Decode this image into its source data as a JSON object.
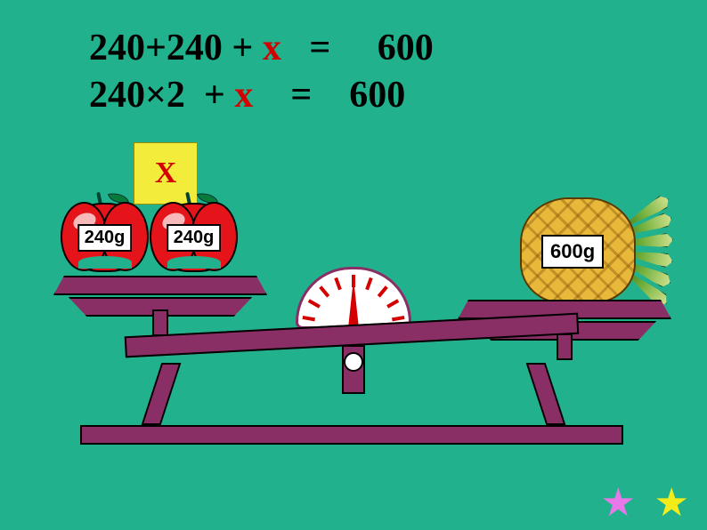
{
  "background_color": "#21b28d",
  "equations": {
    "line1": {
      "a": "240+240 + ",
      "x": "x",
      "b": "   =     600"
    },
    "line2": {
      "a": "240×2  + ",
      "x": "x",
      "b": "    =    600"
    },
    "text_color": "#000000",
    "x_color": "#d40000",
    "font_size_pt": 32
  },
  "scale": {
    "frame_color": "#8a2e66",
    "border_color": "#000000",
    "beam_tilt_deg": -3,
    "dial": {
      "bg": "#ffffff",
      "border": "#8a2e66",
      "tick_color": "#d40000",
      "tick_count": 9,
      "needle_angle_deg": 0
    },
    "left_pan": {
      "unknown_box": {
        "label": "X",
        "bg": "#f4ec3a",
        "text_color": "#d40000"
      },
      "items": [
        {
          "type": "apple",
          "color": "#e4141a",
          "label": "240g"
        },
        {
          "type": "apple",
          "color": "#e4141a",
          "label": "240g"
        }
      ]
    },
    "right_pan": {
      "items": [
        {
          "type": "pineapple",
          "body_color": "#e8b83a",
          "leaf_color": "#4d8a2a",
          "label": "600g"
        }
      ]
    }
  },
  "stars": {
    "pink": {
      "glyph": "★",
      "color": "#e878e8"
    },
    "yellow": {
      "glyph": "★",
      "color": "#f4ec1a"
    }
  }
}
